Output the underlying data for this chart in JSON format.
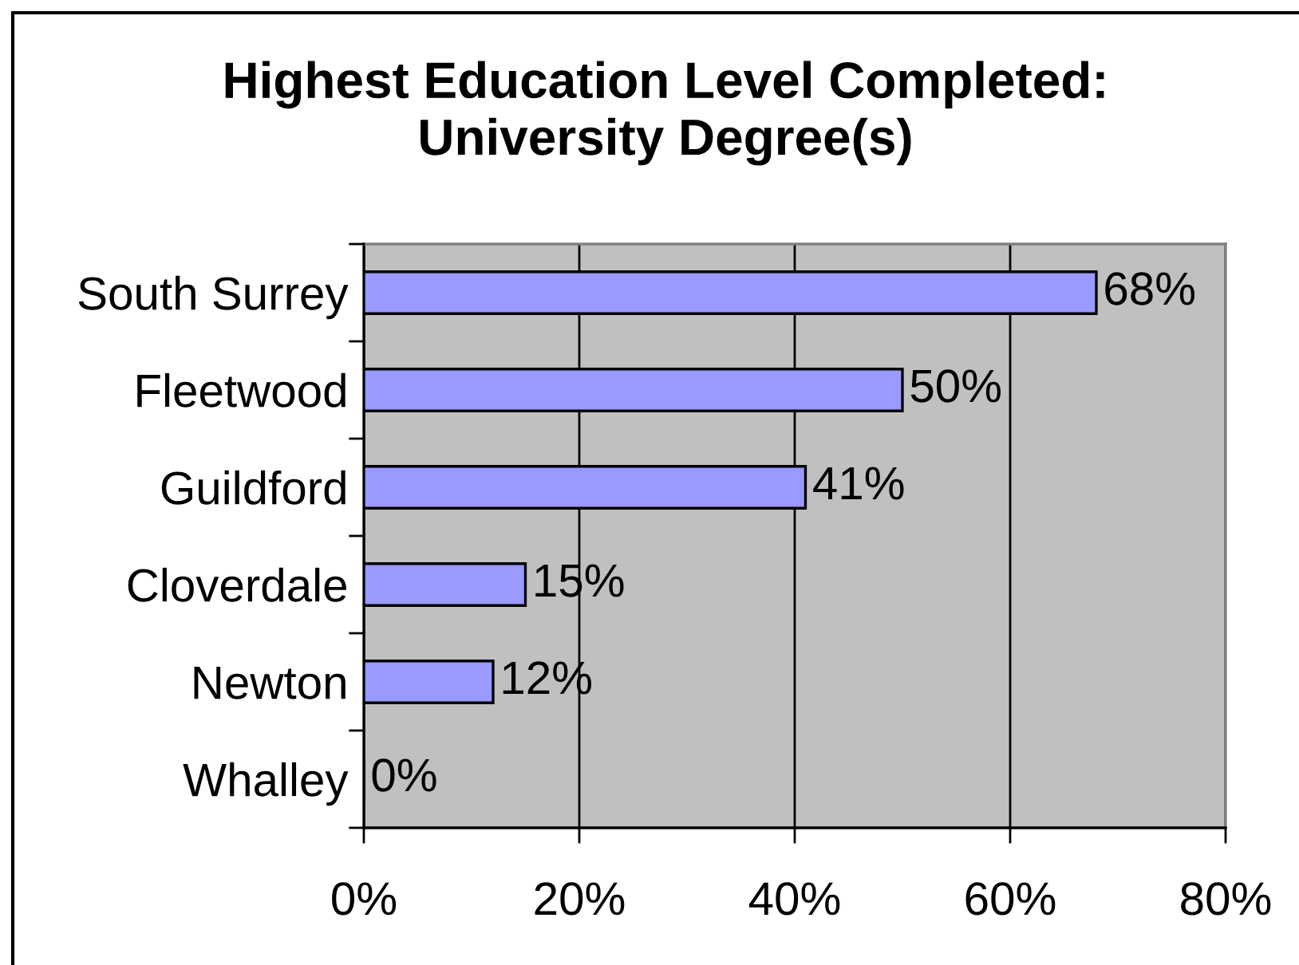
{
  "chart_data": {
    "type": "bar",
    "orientation": "horizontal",
    "title": "Highest Education Level Completed:\nUniversity Degree(s)",
    "categories": [
      "South Surrey",
      "Fleetwood",
      "Guildford",
      "Cloverdale",
      "Newton",
      "Whalley"
    ],
    "values": [
      68,
      50,
      41,
      15,
      12,
      0
    ],
    "value_labels": [
      "68%",
      "50%",
      "41%",
      "15%",
      "12%",
      "0%"
    ],
    "color": "#9999ff",
    "xlim": [
      0,
      80
    ],
    "xticks": [
      {
        "value": 0,
        "label": "0%"
      },
      {
        "value": 20,
        "label": "20%"
      },
      {
        "value": 40,
        "label": "40%"
      },
      {
        "value": 60,
        "label": "60%"
      },
      {
        "value": 80,
        "label": "80%"
      }
    ],
    "grid": "x",
    "legend": false
  }
}
